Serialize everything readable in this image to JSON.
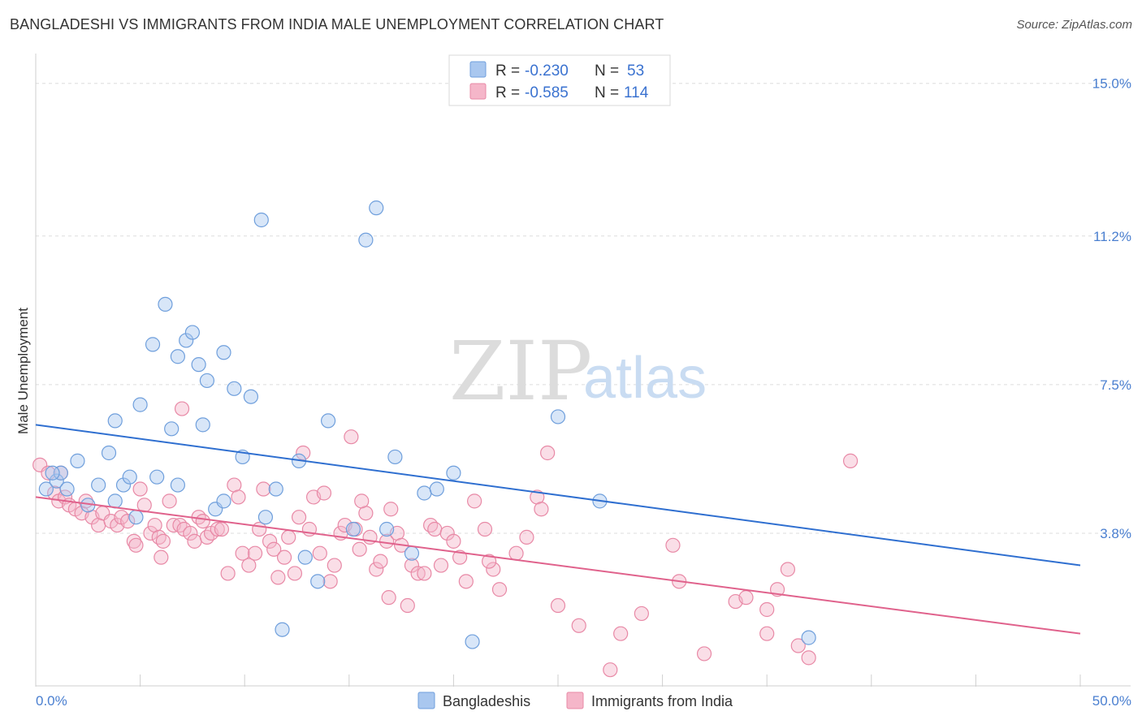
{
  "title": "BANGLADESHI VS IMMIGRANTS FROM INDIA MALE UNEMPLOYMENT CORRELATION CHART",
  "source": "Source: ZipAtlas.com",
  "watermark": {
    "zip": "ZIP",
    "atlas": "atlas"
  },
  "colors": {
    "blue_fill": "#a9c7ef",
    "blue_stroke": "#6f9fdc",
    "blue_line": "#2f6fd0",
    "pink_fill": "#f5b6c9",
    "pink_stroke": "#e889a6",
    "pink_line": "#e0628c",
    "grid": "#dddddd",
    "tick_text": "#4a7fd0"
  },
  "legend": {
    "r_label": "R =",
    "n_label": "N =",
    "rows": [
      {
        "r": "-0.230",
        "n": "53"
      },
      {
        "r": "-0.585",
        "n": "114"
      }
    ]
  },
  "chart_data": {
    "type": "scatter",
    "xlabel": "",
    "ylabel": "Male Unemployment",
    "xlim": [
      0,
      50
    ],
    "ylim": [
      0,
      15.5
    ],
    "x_tick_labels": [
      "0.0%",
      "50.0%"
    ],
    "y_ticks": [
      3.8,
      7.5,
      11.2,
      15.0
    ],
    "y_tick_labels": [
      "3.8%",
      "7.5%",
      "11.2%",
      "15.0%"
    ],
    "grid": true,
    "legend_position": "top-center",
    "series": [
      {
        "name": "Bangladeshis",
        "r": -0.23,
        "n": 53,
        "trend": [
          [
            0,
            6.5
          ],
          [
            50,
            3.0
          ]
        ],
        "points": [
          [
            0.5,
            4.9
          ],
          [
            1.0,
            5.1
          ],
          [
            1.2,
            5.3
          ],
          [
            1.5,
            4.9
          ],
          [
            2.0,
            5.6
          ],
          [
            2.5,
            4.5
          ],
          [
            3.0,
            5.0
          ],
          [
            3.5,
            5.8
          ],
          [
            3.8,
            6.6
          ],
          [
            4.2,
            5.0
          ],
          [
            4.5,
            5.2
          ],
          [
            4.8,
            4.2
          ],
          [
            5.0,
            7.0
          ],
          [
            5.6,
            8.5
          ],
          [
            5.8,
            5.2
          ],
          [
            6.2,
            9.5
          ],
          [
            6.5,
            6.4
          ],
          [
            6.8,
            8.2
          ],
          [
            7.2,
            8.6
          ],
          [
            7.5,
            8.8
          ],
          [
            7.8,
            8.0
          ],
          [
            8.0,
            6.5
          ],
          [
            8.2,
            7.6
          ],
          [
            8.6,
            4.4
          ],
          [
            9.0,
            8.3
          ],
          [
            9.5,
            7.4
          ],
          [
            9.9,
            5.7
          ],
          [
            10.3,
            7.2
          ],
          [
            10.8,
            11.6
          ],
          [
            11.0,
            4.2
          ],
          [
            11.5,
            4.9
          ],
          [
            11.8,
            1.4
          ],
          [
            12.6,
            5.6
          ],
          [
            12.9,
            3.2
          ],
          [
            13.5,
            2.6
          ],
          [
            14.0,
            6.6
          ],
          [
            15.2,
            3.9
          ],
          [
            15.8,
            11.1
          ],
          [
            16.3,
            11.9
          ],
          [
            16.8,
            3.9
          ],
          [
            17.2,
            5.7
          ],
          [
            18.0,
            3.3
          ],
          [
            18.6,
            4.8
          ],
          [
            19.2,
            4.9
          ],
          [
            20.0,
            5.3
          ],
          [
            20.9,
            1.1
          ],
          [
            25.0,
            6.7
          ],
          [
            27.0,
            4.6
          ],
          [
            37.0,
            1.2
          ],
          [
            0.8,
            5.3
          ],
          [
            3.8,
            4.6
          ],
          [
            6.8,
            5.0
          ],
          [
            9.0,
            4.6
          ]
        ]
      },
      {
        "name": "Immigrants from India",
        "r": -0.585,
        "n": 114,
        "trend": [
          [
            0,
            4.7
          ],
          [
            50,
            1.3
          ]
        ],
        "points": [
          [
            0.2,
            5.5
          ],
          [
            0.6,
            5.3
          ],
          [
            0.9,
            4.8
          ],
          [
            1.1,
            4.6
          ],
          [
            1.4,
            4.7
          ],
          [
            1.6,
            4.5
          ],
          [
            1.9,
            4.4
          ],
          [
            2.2,
            4.3
          ],
          [
            2.4,
            4.6
          ],
          [
            2.7,
            4.2
          ],
          [
            3.0,
            4.0
          ],
          [
            3.2,
            4.3
          ],
          [
            3.6,
            4.1
          ],
          [
            3.9,
            4.0
          ],
          [
            4.1,
            4.2
          ],
          [
            4.4,
            4.1
          ],
          [
            4.7,
            3.6
          ],
          [
            5.0,
            4.9
          ],
          [
            5.2,
            4.5
          ],
          [
            5.5,
            3.8
          ],
          [
            5.7,
            4.0
          ],
          [
            5.9,
            3.7
          ],
          [
            6.1,
            3.6
          ],
          [
            6.4,
            4.6
          ],
          [
            6.6,
            4.0
          ],
          [
            6.9,
            4.0
          ],
          [
            7.1,
            3.9
          ],
          [
            7.4,
            3.8
          ],
          [
            7.6,
            3.6
          ],
          [
            7.8,
            4.2
          ],
          [
            8.0,
            4.1
          ],
          [
            8.2,
            3.7
          ],
          [
            8.4,
            3.8
          ],
          [
            8.7,
            3.9
          ],
          [
            8.9,
            3.9
          ],
          [
            9.2,
            2.8
          ],
          [
            9.5,
            5.0
          ],
          [
            9.7,
            4.7
          ],
          [
            9.9,
            3.3
          ],
          [
            10.2,
            3.0
          ],
          [
            10.5,
            3.3
          ],
          [
            10.7,
            3.9
          ],
          [
            10.9,
            4.9
          ],
          [
            11.2,
            3.6
          ],
          [
            11.4,
            3.4
          ],
          [
            11.6,
            2.7
          ],
          [
            11.9,
            3.2
          ],
          [
            12.1,
            3.7
          ],
          [
            12.4,
            2.8
          ],
          [
            12.6,
            4.2
          ],
          [
            12.8,
            5.8
          ],
          [
            13.1,
            3.9
          ],
          [
            13.3,
            4.7
          ],
          [
            13.6,
            3.3
          ],
          [
            13.8,
            4.8
          ],
          [
            14.1,
            2.6
          ],
          [
            14.3,
            3.0
          ],
          [
            14.6,
            3.8
          ],
          [
            14.8,
            4.0
          ],
          [
            15.1,
            6.2
          ],
          [
            15.3,
            3.9
          ],
          [
            15.5,
            3.4
          ],
          [
            15.8,
            4.3
          ],
          [
            16.0,
            3.7
          ],
          [
            16.3,
            2.9
          ],
          [
            16.5,
            3.1
          ],
          [
            16.8,
            3.6
          ],
          [
            17.0,
            4.4
          ],
          [
            17.3,
            3.8
          ],
          [
            17.5,
            3.5
          ],
          [
            17.8,
            2.0
          ],
          [
            18.0,
            3.0
          ],
          [
            18.3,
            2.8
          ],
          [
            18.6,
            2.8
          ],
          [
            18.9,
            4.0
          ],
          [
            19.1,
            3.9
          ],
          [
            19.4,
            3.0
          ],
          [
            19.7,
            3.8
          ],
          [
            20.0,
            3.6
          ],
          [
            20.3,
            3.2
          ],
          [
            20.6,
            2.6
          ],
          [
            21.0,
            4.6
          ],
          [
            21.5,
            3.9
          ],
          [
            21.9,
            2.9
          ],
          [
            22.2,
            2.4
          ],
          [
            23.0,
            3.3
          ],
          [
            23.5,
            3.7
          ],
          [
            24.0,
            4.7
          ],
          [
            24.2,
            4.4
          ],
          [
            24.5,
            5.8
          ],
          [
            25.0,
            2.0
          ],
          [
            27.5,
            0.4
          ],
          [
            28.0,
            1.3
          ],
          [
            29.0,
            1.8
          ],
          [
            30.5,
            3.5
          ],
          [
            30.8,
            2.6
          ],
          [
            32.0,
            0.8
          ],
          [
            33.5,
            2.1
          ],
          [
            34.0,
            2.2
          ],
          [
            35.0,
            1.9
          ],
          [
            35.5,
            2.4
          ],
          [
            36.0,
            2.9
          ],
          [
            36.5,
            1.0
          ],
          [
            37.0,
            0.7
          ],
          [
            39.0,
            5.6
          ],
          [
            1.2,
            5.3
          ],
          [
            15.6,
            4.6
          ],
          [
            7.0,
            6.9
          ],
          [
            35.0,
            1.3
          ],
          [
            16.9,
            2.2
          ],
          [
            4.8,
            3.5
          ],
          [
            6.0,
            3.2
          ],
          [
            21.7,
            3.1
          ],
          [
            26.0,
            1.5
          ]
        ]
      }
    ]
  },
  "bottom_legend": [
    "Bangladeshis",
    "Immigrants from India"
  ]
}
